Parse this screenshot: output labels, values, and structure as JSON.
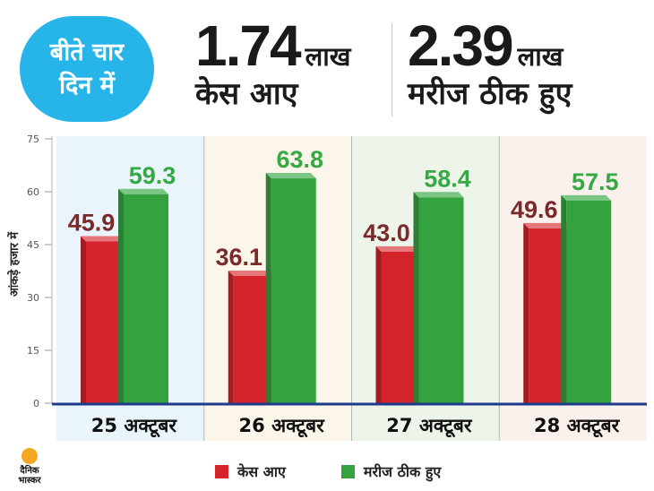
{
  "header": {
    "badge_line1": "बीते चार",
    "badge_line2": "दिन में",
    "stat1": {
      "value": "1.74",
      "unit": "लाख",
      "caption": "केस आए"
    },
    "stat2": {
      "value": "2.39",
      "unit": "लाख",
      "caption": "मरीज ठीक हुए"
    }
  },
  "logo": {
    "line1": "दैनिक",
    "line2": "भास्कर"
  },
  "colors": {
    "cases": "#d5232b",
    "recovered": "#34a23f",
    "cases_label": "#7a2a2a",
    "recovered_label": "#36a844",
    "badge": "#27b4e8",
    "axis_line": "#1e3a8c",
    "panel_backgrounds": [
      "#eaf5fb",
      "#fbf5ea",
      "#edf4ea",
      "#fbf1ec"
    ]
  },
  "chart_data": {
    "type": "bar",
    "title": "",
    "ylabel": "आंकड़े हजार में",
    "xlabel": "",
    "ylim": [
      0,
      75
    ],
    "yticks": [
      "0",
      "15",
      "30",
      "45",
      "60",
      "75"
    ],
    "categories": [
      "25 अक्टूबर",
      "26 अक्टूबर",
      "27 अक्टूबर",
      "28 अक्टूबर"
    ],
    "series": [
      {
        "name": "केस आए",
        "values": [
          45.9,
          36.1,
          43.0,
          49.6
        ],
        "labels": [
          "45.9",
          "36.1",
          "43.0",
          "49.6"
        ]
      },
      {
        "name": "मरीज ठीक हुए",
        "values": [
          59.3,
          63.8,
          58.4,
          57.5
        ],
        "labels": [
          "59.3",
          "63.8",
          "58.4",
          "57.5"
        ]
      }
    ],
    "legend_position": "bottom",
    "grid": false
  }
}
